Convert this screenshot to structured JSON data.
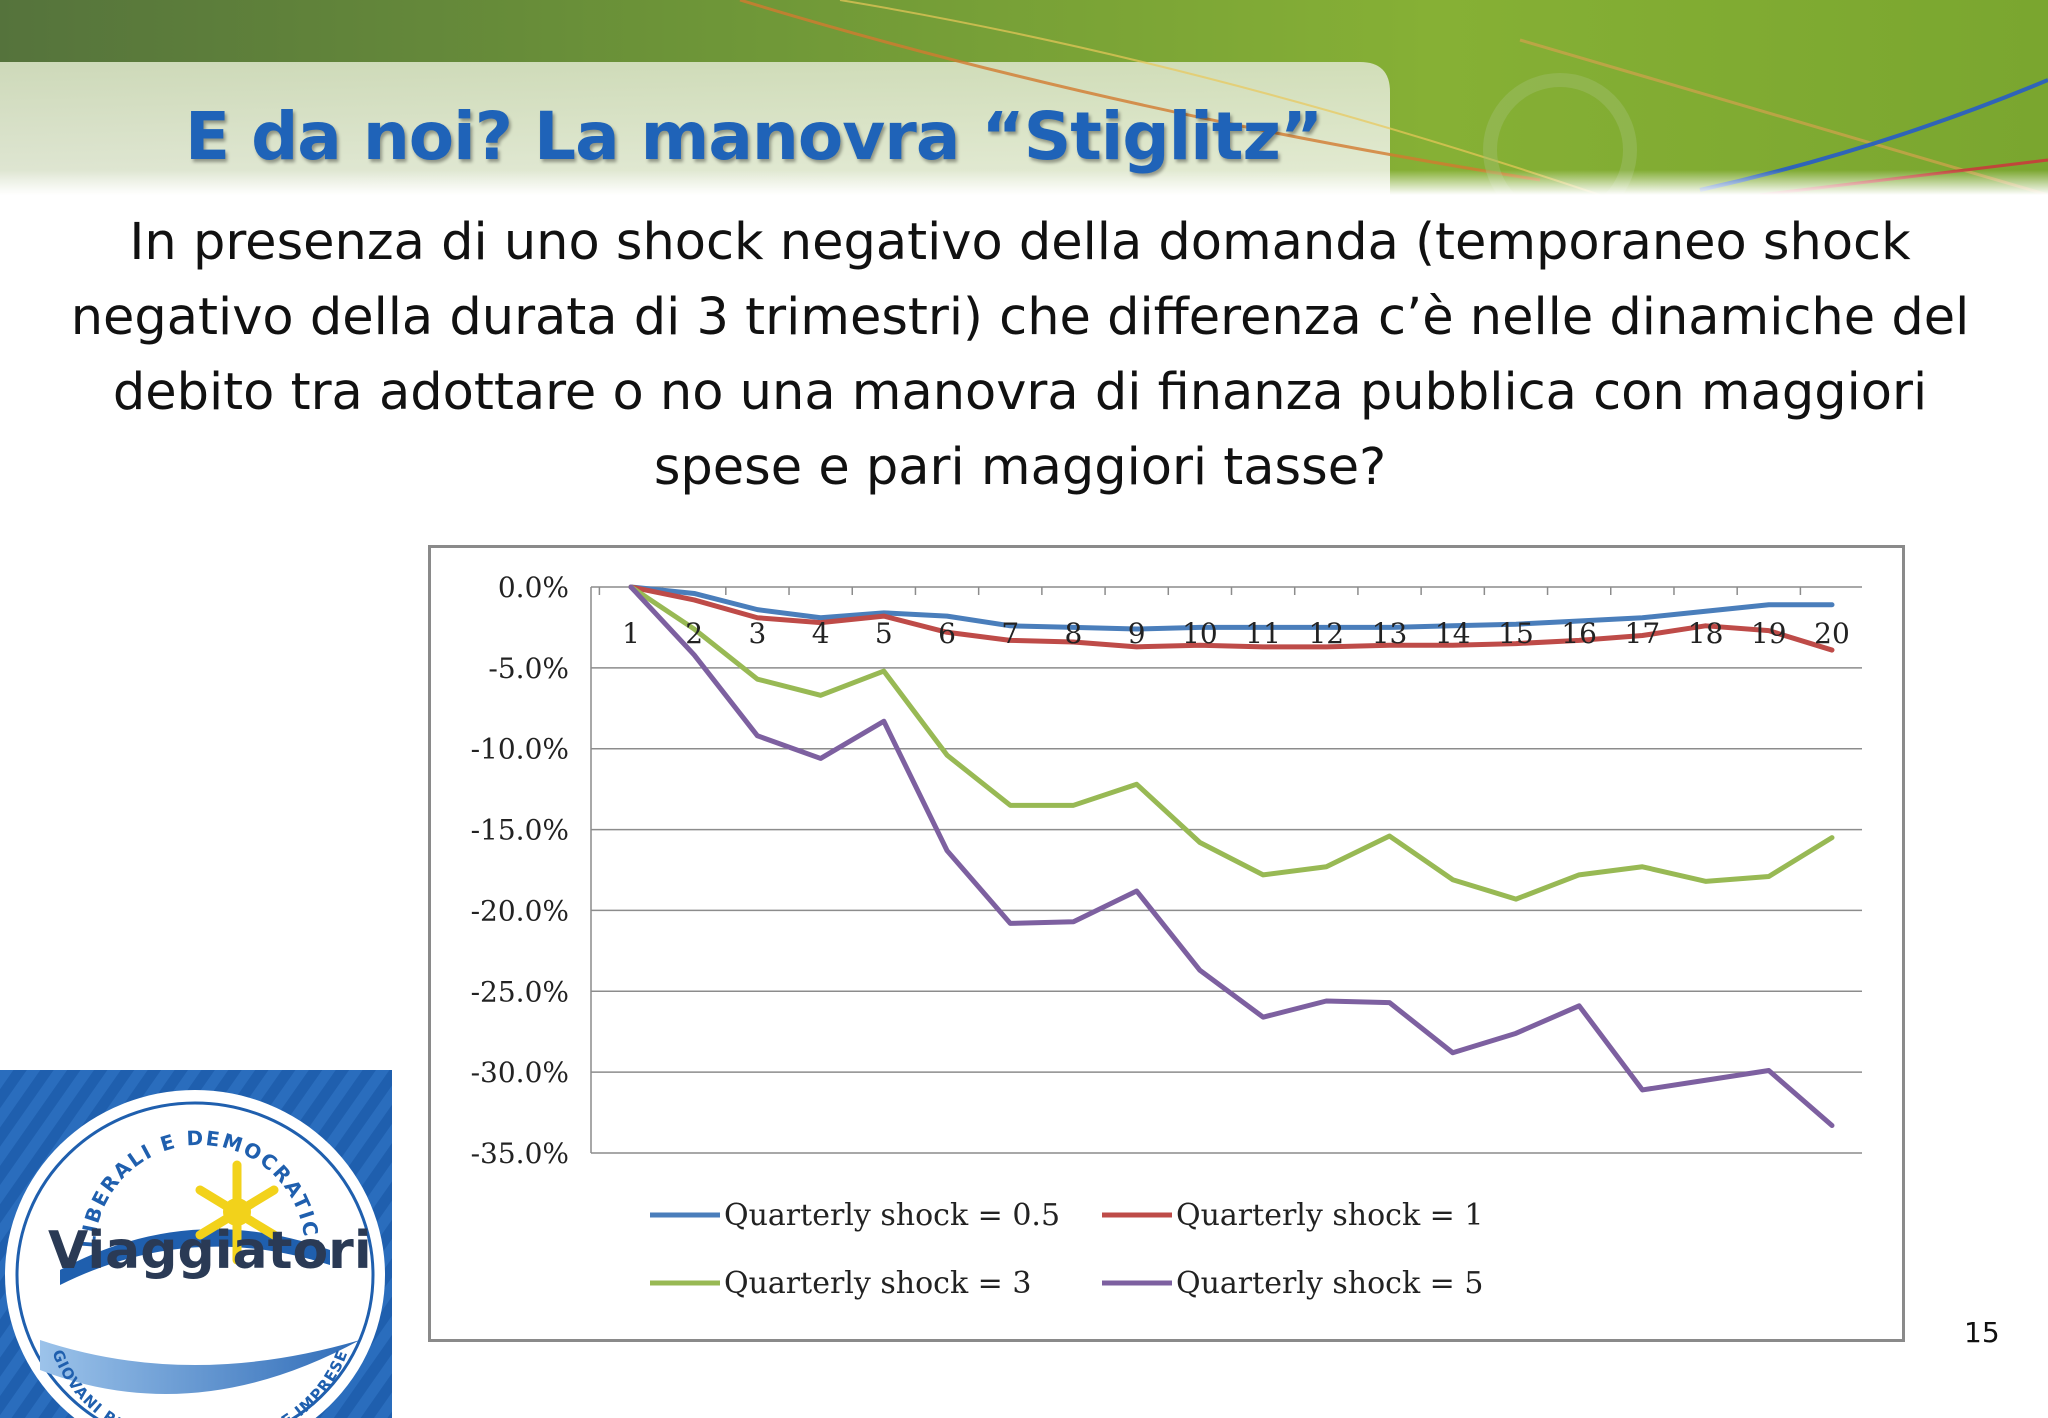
{
  "slide": {
    "title": "E da noi? La manovra “Stiglitz”",
    "question_lines": [
      "In presenza di uno shock negativo della domanda (temporaneo shock",
      "negativo della durata di 3 trimestri) che differenza c’è nelle dinamiche del",
      "debito tra adottare o no una manovra di finanza pubblica con maggiori",
      "spese e pari maggiori tasse?"
    ],
    "page_number": "15"
  },
  "logo": {
    "name": "Viaggiatori",
    "top_text": "LIBERALI E DEMOCRATICI",
    "bottom_text": "GIOVANI RES PUBLICA PICCOLE IMPRESE"
  },
  "colors": {
    "title": "#1f63b8",
    "banner_green": "#7ea83c",
    "logo_blue": "#1f5fae",
    "logo_star": "#f2d21b"
  },
  "chart_data": {
    "type": "line",
    "x": [
      1,
      2,
      3,
      4,
      5,
      6,
      7,
      8,
      9,
      10,
      11,
      12,
      13,
      14,
      15,
      16,
      17,
      18,
      19,
      20
    ],
    "ylim": [
      -35,
      0
    ],
    "yticks": [
      "0.0%",
      "-5.0%",
      "-10.0%",
      "-15.0%",
      "-20.0%",
      "-25.0%",
      "-30.0%",
      "-35.0%"
    ],
    "ytick_values": [
      0,
      -5,
      -10,
      -15,
      -20,
      -25,
      -30,
      -35
    ],
    "grid": true,
    "legend_position": "bottom",
    "series": [
      {
        "name": "Quarterly shock = 0.5",
        "color": "#4a7ebb",
        "values": [
          0,
          -0.4,
          -1.4,
          -1.9,
          -1.6,
          -1.8,
          -2.4,
          -2.5,
          -2.6,
          -2.5,
          -2.5,
          -2.5,
          -2.5,
          -2.4,
          -2.3,
          -2.1,
          -1.9,
          -1.5,
          -1.1,
          -1.1
        ]
      },
      {
        "name": "Quarterly shock = 1",
        "color": "#be4b48",
        "values": [
          0,
          -0.8,
          -1.9,
          -2.2,
          -1.8,
          -2.8,
          -3.3,
          -3.4,
          -3.7,
          -3.6,
          -3.7,
          -3.7,
          -3.6,
          -3.6,
          -3.5,
          -3.3,
          -3.0,
          -2.4,
          -2.7,
          -3.9
        ]
      },
      {
        "name": "Quarterly shock = 3",
        "color": "#98b954",
        "values": [
          0,
          -2.6,
          -5.7,
          -6.7,
          -5.2,
          -10.4,
          -13.5,
          -13.5,
          -12.2,
          -15.8,
          -17.8,
          -17.3,
          -15.4,
          -18.1,
          -19.3,
          -17.8,
          -17.3,
          -18.2,
          -17.9,
          -15.5
        ]
      },
      {
        "name": "Quarterly shock = 5",
        "color": "#7d60a0",
        "values": [
          0,
          -4.2,
          -9.2,
          -10.6,
          -8.3,
          -16.3,
          -20.8,
          -20.7,
          -18.8,
          -23.7,
          -26.6,
          -25.6,
          -25.7,
          -28.8,
          -27.6,
          -25.9,
          -31.1,
          -30.5,
          -29.9,
          -33.3
        ]
      }
    ]
  }
}
